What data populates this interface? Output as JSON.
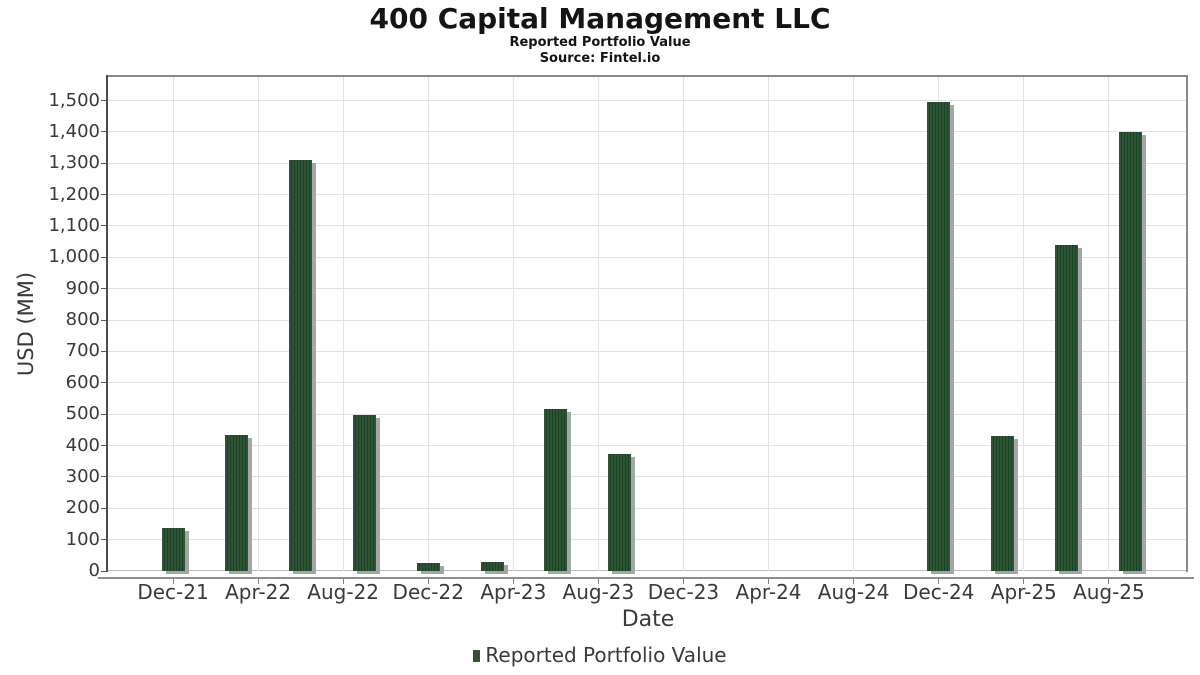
{
  "chart_data": {
    "type": "bar",
    "title": "400 Capital Management LLC",
    "subtitle": "Reported Portfolio Value",
    "source": "Source: Fintel.io",
    "xlabel": "Date",
    "ylabel": "USD (MM)",
    "ylim": [
      0,
      1575
    ],
    "grid": true,
    "legend_position": "bottom",
    "bar_color": "#2d5435",
    "bar_stripe_color": "#1e4126",
    "shadow_color": "#a6a6a6",
    "grid_color": "#e2e2e2",
    "categories": [
      "Dec-21",
      "Mar-22",
      "Jun-22",
      "Sep-22",
      "Dec-22",
      "Mar-23",
      "Jun-23",
      "Sep-23",
      "Dec-24",
      "Mar-25",
      "Jun-25",
      "Sep-25"
    ],
    "series": [
      {
        "name": "Reported Portfolio Value",
        "values": [
          137,
          435,
          1310,
          497,
          25,
          30,
          515,
          372,
          1495,
          430,
          1040,
          1400
        ]
      }
    ],
    "bars": [
      {
        "date": "Dec-21",
        "month": 0,
        "value": 137
      },
      {
        "date": "Mar-22",
        "month": 3,
        "value": 435
      },
      {
        "date": "Jun-22",
        "month": 6,
        "value": 1310
      },
      {
        "date": "Sep-22",
        "month": 9,
        "value": 497
      },
      {
        "date": "Dec-22",
        "month": 12,
        "value": 25
      },
      {
        "date": "Mar-23",
        "month": 15,
        "value": 30
      },
      {
        "date": "Jun-23",
        "month": 18,
        "value": 515
      },
      {
        "date": "Sep-23",
        "month": 21,
        "value": 372
      },
      {
        "date": "Dec-24",
        "month": 36,
        "value": 1495
      },
      {
        "date": "Mar-25",
        "month": 39,
        "value": 430
      },
      {
        "date": "Jun-25",
        "month": 42,
        "value": 1040
      },
      {
        "date": "Sep-25",
        "month": 45,
        "value": 1400
      }
    ],
    "x_ticks": [
      {
        "label": "Dec-21",
        "month": 0
      },
      {
        "label": "Apr-22",
        "month": 4
      },
      {
        "label": "Aug-22",
        "month": 8
      },
      {
        "label": "Dec-22",
        "month": 12
      },
      {
        "label": "Apr-23",
        "month": 16
      },
      {
        "label": "Aug-23",
        "month": 20
      },
      {
        "label": "Dec-23",
        "month": 24
      },
      {
        "label": "Apr-24",
        "month": 28
      },
      {
        "label": "Aug-24",
        "month": 32
      },
      {
        "label": "Dec-24",
        "month": 36
      },
      {
        "label": "Apr-25",
        "month": 40
      },
      {
        "label": "Aug-25",
        "month": 44
      }
    ],
    "y_ticks": [
      {
        "label": "0",
        "value": 0
      },
      {
        "label": "100",
        "value": 100
      },
      {
        "label": "200",
        "value": 200
      },
      {
        "label": "300",
        "value": 300
      },
      {
        "label": "400",
        "value": 400
      },
      {
        "label": "500",
        "value": 500
      },
      {
        "label": "600",
        "value": 600
      },
      {
        "label": "700",
        "value": 700
      },
      {
        "label": "800",
        "value": 800
      },
      {
        "label": "900",
        "value": 900
      },
      {
        "label": "1,000",
        "value": 1000
      },
      {
        "label": "1,100",
        "value": 1100
      },
      {
        "label": "1,200",
        "value": 1200
      },
      {
        "label": "1,300",
        "value": 1300
      },
      {
        "label": "1,400",
        "value": 1400
      },
      {
        "label": "1,500",
        "value": 1500
      }
    ]
  }
}
